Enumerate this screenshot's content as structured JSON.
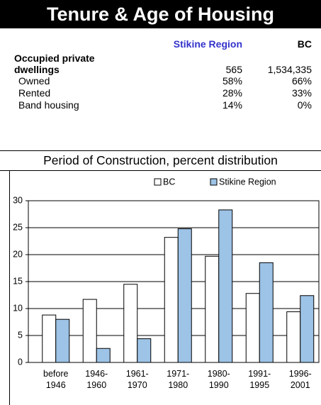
{
  "header": {
    "title": "Tenure & Age of Housing"
  },
  "table": {
    "columns": [
      "Stikine Region",
      "BC"
    ],
    "rows": [
      {
        "label": "Occupied private dwellings",
        "values": [
          "565",
          "1,534,335"
        ]
      },
      {
        "label": "Owned",
        "values": [
          "58%",
          "66%"
        ]
      },
      {
        "label": "Rented",
        "values": [
          "28%",
          "33%"
        ]
      },
      {
        "label": "Band housing",
        "values": [
          "14%",
          "0%"
        ]
      }
    ]
  },
  "chart_data": {
    "type": "bar",
    "title": "Period of Construction, percent distribution",
    "categories": [
      "before 1946",
      "1946-1960",
      "1961-1970",
      "1971-1980",
      "1980-1990",
      "1991-1995",
      "1996-2001"
    ],
    "series": [
      {
        "name": "BC",
        "color": "#ffffff",
        "values": [
          8.8,
          11.7,
          14.5,
          23.2,
          19.7,
          12.8,
          9.4
        ]
      },
      {
        "name": "Stikine Region",
        "color": "#9dc3e6",
        "values": [
          8.0,
          2.6,
          4.4,
          24.8,
          28.3,
          18.5,
          12.4
        ]
      }
    ],
    "ylim": [
      0,
      30
    ],
    "yticks": [
      0,
      5,
      10,
      15,
      20,
      25,
      30
    ],
    "grid": true,
    "legend": "top"
  }
}
